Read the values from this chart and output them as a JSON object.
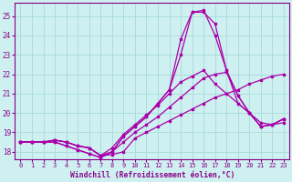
{
  "xlabel": "Windchill (Refroidissement éolien,°C)",
  "background_color": "#cff0f0",
  "grid_color": "#aadddd",
  "line_color": "#aa00aa",
  "xlim": [
    -0.5,
    23.5
  ],
  "ylim": [
    17.6,
    25.7
  ],
  "yticks": [
    18,
    19,
    20,
    21,
    22,
    23,
    24,
    25
  ],
  "xticks": [
    0,
    1,
    2,
    3,
    4,
    5,
    6,
    7,
    8,
    9,
    10,
    11,
    12,
    13,
    14,
    15,
    16,
    17,
    18,
    19,
    20,
    21,
    22,
    23
  ],
  "series": [
    [
      18.5,
      18.5,
      18.5,
      18.6,
      18.5,
      18.3,
      18.2,
      17.8,
      17.85,
      18.0,
      18.7,
      19.0,
      19.3,
      19.6,
      19.9,
      20.2,
      20.5,
      20.8,
      21.0,
      21.2,
      21.5,
      21.7,
      21.9,
      22.0
    ],
    [
      18.5,
      18.5,
      18.5,
      18.6,
      18.5,
      18.3,
      18.2,
      17.8,
      18.0,
      18.5,
      19.0,
      19.4,
      19.8,
      20.3,
      20.8,
      21.3,
      21.8,
      22.0,
      22.1,
      20.9,
      20.0,
      19.3,
      19.4,
      19.7
    ],
    [
      18.5,
      18.5,
      18.5,
      18.6,
      18.5,
      18.3,
      18.2,
      17.8,
      18.2,
      18.9,
      19.4,
      19.9,
      20.4,
      21.0,
      21.6,
      21.9,
      22.2,
      21.5,
      21.0,
      20.5,
      20.0,
      19.5,
      19.4,
      19.5
    ],
    [
      18.5,
      18.5,
      18.5,
      18.5,
      18.3,
      18.1,
      17.9,
      17.7,
      18.0,
      18.8,
      19.3,
      19.8,
      20.5,
      21.2,
      23.8,
      25.2,
      25.2,
      24.6,
      22.2,
      20.9,
      20.0,
      19.3,
      19.4,
      19.7
    ],
    [
      18.5,
      18.5,
      18.5,
      18.5,
      18.3,
      18.1,
      17.9,
      17.7,
      18.0,
      18.8,
      19.3,
      19.8,
      20.5,
      21.2,
      23.0,
      25.2,
      25.3,
      24.0,
      22.2,
      20.5,
      20.0,
      19.3,
      19.4,
      19.7
    ]
  ]
}
